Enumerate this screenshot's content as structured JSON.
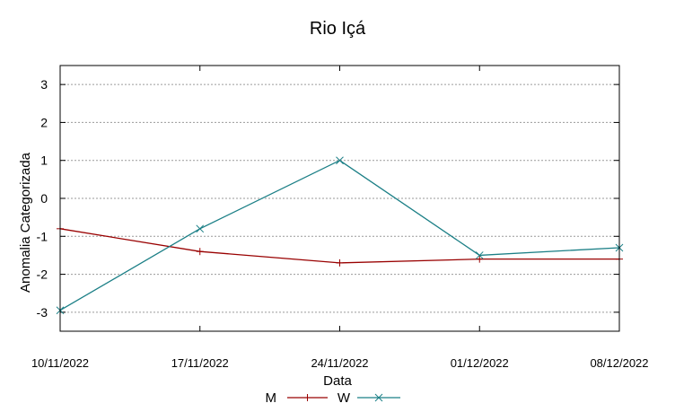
{
  "chart_data": {
    "type": "line",
    "title": "Rio Içá",
    "xlabel": "Data",
    "ylabel": "Anomalia Categorizada",
    "categories": [
      "10/11/2022",
      "17/11/2022",
      "24/11/2022",
      "01/12/2022",
      "08/12/2022"
    ],
    "ylim": [
      -3.5,
      3.5
    ],
    "yticks": [
      "-3",
      "-2",
      "-1",
      "0",
      "1",
      "2",
      "3"
    ],
    "grid": true,
    "legend_position": "bottom",
    "series": [
      {
        "name": "M",
        "color": "#990000",
        "marker": "+",
        "values": [
          -0.8,
          -1.4,
          -1.7,
          -1.6,
          -1.6
        ]
      },
      {
        "name": "W",
        "color": "#1b7f86",
        "marker": "x",
        "values": [
          -2.95,
          -0.8,
          1.0,
          -1.5,
          -1.3
        ]
      }
    ]
  }
}
